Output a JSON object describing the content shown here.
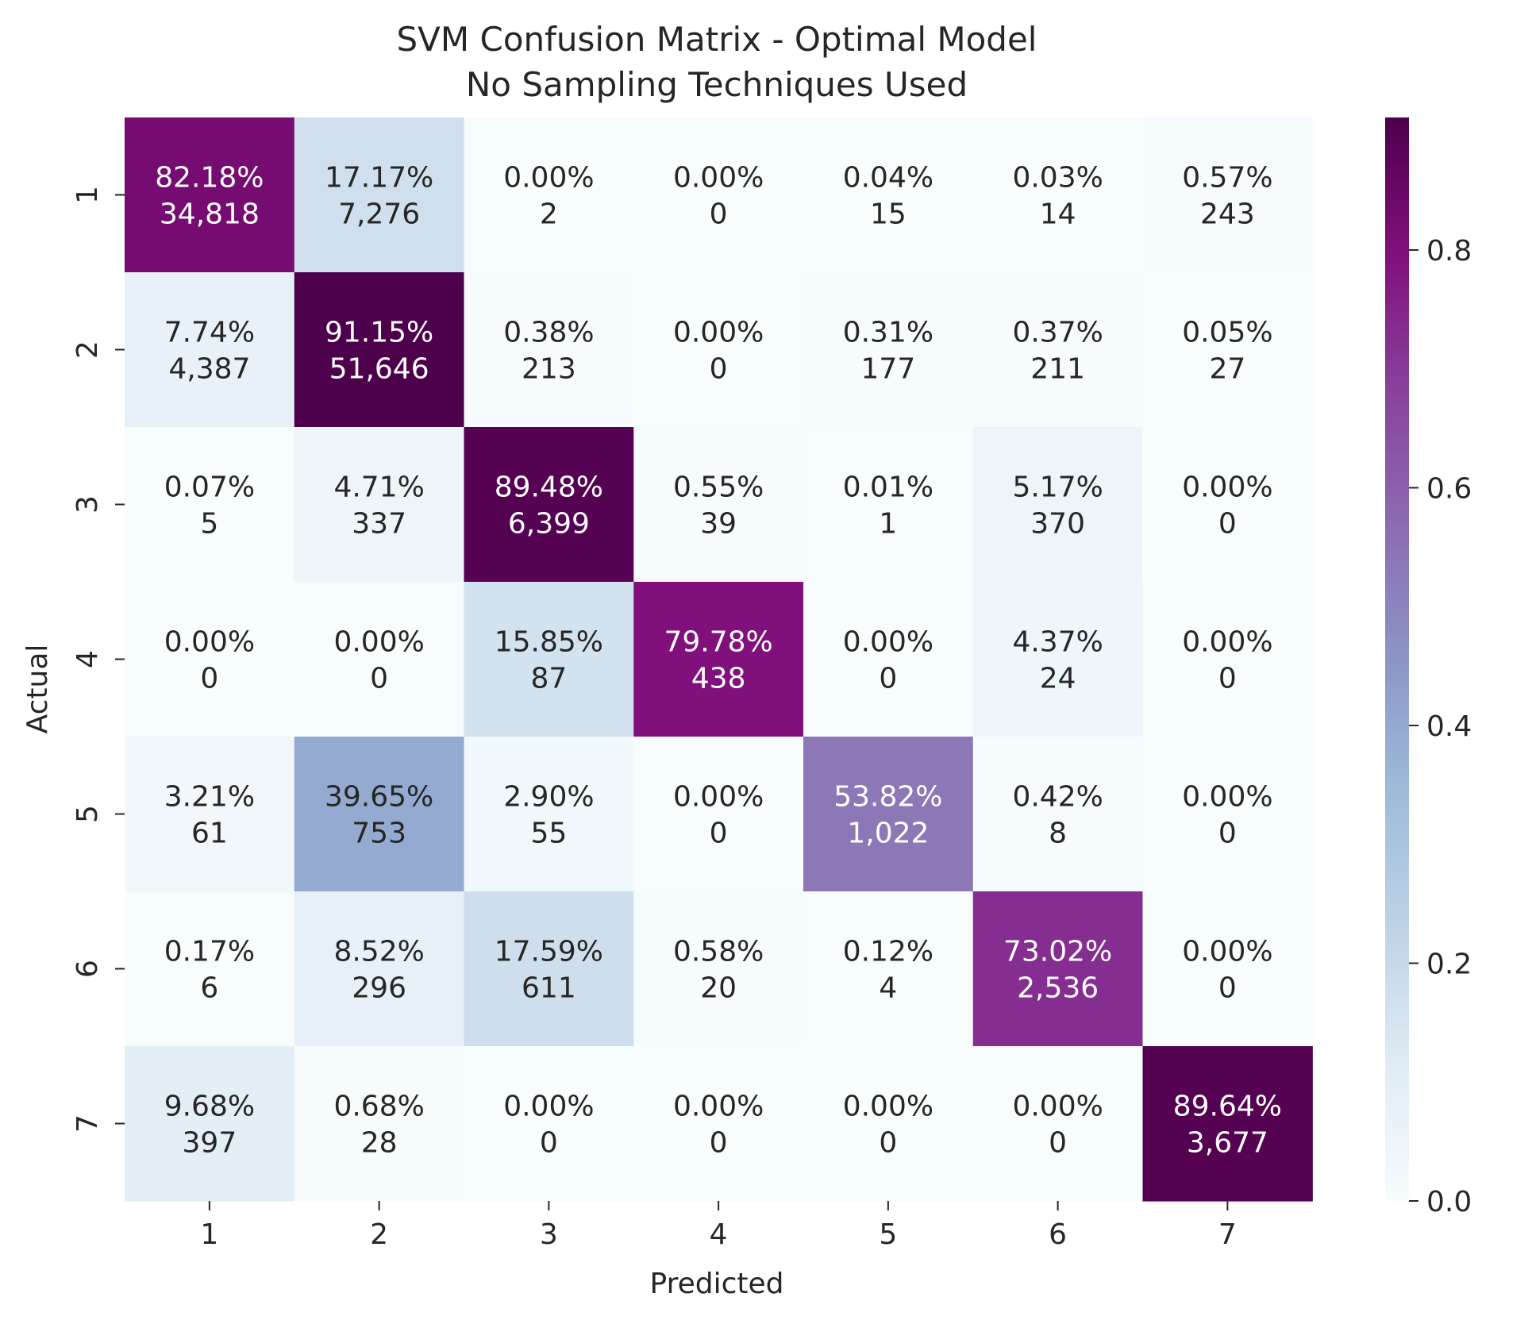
{
  "chart_data": {
    "type": "heatmap",
    "title": "SVM Confusion Matrix - Optimal Model",
    "subtitle": "No Sampling Techniques Used",
    "xlabel": "Predicted",
    "ylabel": "Actual",
    "x_categories": [
      "1",
      "2",
      "3",
      "4",
      "5",
      "6",
      "7"
    ],
    "y_categories": [
      "1",
      "2",
      "3",
      "4",
      "5",
      "6",
      "7"
    ],
    "percent_labels": [
      [
        "82.18%",
        "17.17%",
        "0.00%",
        "0.00%",
        "0.04%",
        "0.03%",
        "0.57%"
      ],
      [
        "7.74%",
        "91.15%",
        "0.38%",
        "0.00%",
        "0.31%",
        "0.37%",
        "0.05%"
      ],
      [
        "0.07%",
        "4.71%",
        "89.48%",
        "0.55%",
        "0.01%",
        "5.17%",
        "0.00%"
      ],
      [
        "0.00%",
        "0.00%",
        "15.85%",
        "79.78%",
        "0.00%",
        "4.37%",
        "0.00%"
      ],
      [
        "3.21%",
        "39.65%",
        "2.90%",
        "0.00%",
        "53.82%",
        "0.42%",
        "0.00%"
      ],
      [
        "0.17%",
        "8.52%",
        "17.59%",
        "0.58%",
        "0.12%",
        "73.02%",
        "0.00%"
      ],
      [
        "9.68%",
        "0.68%",
        "0.00%",
        "0.00%",
        "0.00%",
        "0.00%",
        "89.64%"
      ]
    ],
    "count_labels": [
      [
        "34,818",
        "7,276",
        "2",
        "0",
        "15",
        "14",
        "243"
      ],
      [
        "4,387",
        "51,646",
        "213",
        "0",
        "177",
        "211",
        "27"
      ],
      [
        "5",
        "337",
        "6,399",
        "39",
        "1",
        "370",
        "0"
      ],
      [
        "0",
        "0",
        "87",
        "438",
        "0",
        "24",
        "0"
      ],
      [
        "61",
        "753",
        "55",
        "0",
        "1,022",
        "8",
        "0"
      ],
      [
        "6",
        "296",
        "611",
        "20",
        "4",
        "2,536",
        "0"
      ],
      [
        "397",
        "28",
        "0",
        "0",
        "0",
        "0",
        "3,677"
      ]
    ],
    "colorbar": {
      "colormap": "BuPu",
      "vmin": 0.0,
      "vmax": 0.9115,
      "ticks": [
        0.0,
        0.2,
        0.4,
        0.6,
        0.8
      ],
      "tick_labels": [
        "0.0",
        "0.2",
        "0.4",
        "0.6",
        "0.8"
      ]
    }
  }
}
